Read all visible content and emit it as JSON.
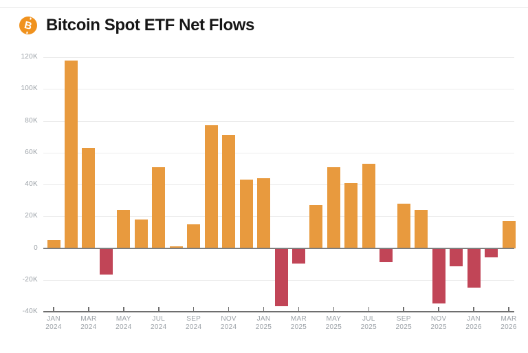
{
  "header": {
    "title": "Bitcoin Spot ETF Net Flows",
    "icon": "bitcoin-icon",
    "icon_symbol": "B",
    "icon_color": "#F0921E"
  },
  "chart_data": {
    "type": "bar",
    "title": "Bitcoin Spot ETF Net Flows",
    "unit": "thousands (K)",
    "grid": true,
    "legend": false,
    "positive_color": "#E89A3E",
    "negative_color": "#C14557",
    "ylim_k": [
      -40,
      120
    ],
    "x": [
      "JAN 2024",
      "FEB 2024",
      "MAR 2024",
      "APR 2024",
      "MAY 2024",
      "JUN 2024",
      "JUL 2024",
      "AUG 2024",
      "SEP 2024",
      "OCT 2024",
      "NOV 2024",
      "DEC 2024",
      "JAN 2025",
      "FEB 2025",
      "MAR 2025",
      "APR 2025",
      "MAY 2025",
      "JUN 2025",
      "JUL 2025",
      "AUG 2025",
      "SEP 2025",
      "OCT 2025",
      "NOV 2025",
      "DEC 2025",
      "JAN 2026",
      "FEB 2026",
      "MAR 2026"
    ],
    "values_k": [
      5,
      118,
      63,
      -16,
      24,
      18,
      51,
      1,
      15,
      77,
      71,
      43,
      44,
      -36,
      -9,
      27,
      51,
      41,
      53,
      -8,
      28,
      24,
      -34,
      -11,
      -24,
      -5,
      17
    ],
    "y_ticks": [
      {
        "label": "120K",
        "value": 120
      },
      {
        "label": "100K",
        "value": 100
      },
      {
        "label": "80K",
        "value": 80
      },
      {
        "label": "60K",
        "value": 60
      },
      {
        "label": "40K",
        "value": 40
      },
      {
        "label": "20K",
        "value": 20
      },
      {
        "label": "0",
        "value": 0
      },
      {
        "label": "-20K",
        "value": -20
      },
      {
        "label": "-40K",
        "value": -40
      }
    ],
    "x_tick_labels": [
      [
        "JAN",
        "2024"
      ],
      [
        "MAR",
        "2024"
      ],
      [
        "MAY",
        "2024"
      ],
      [
        "JUL",
        "2024"
      ],
      [
        "SEP",
        "2024"
      ],
      [
        "NOV",
        "2024"
      ],
      [
        "JAN",
        "2025"
      ],
      [
        "MAR",
        "2025"
      ],
      [
        "MAY",
        "2025"
      ],
      [
        "JUL",
        "2025"
      ],
      [
        "SEP",
        "2025"
      ],
      [
        "NOV",
        "2025"
      ],
      [
        "JAN",
        "2026"
      ],
      [
        "MAR",
        "2026"
      ]
    ]
  }
}
